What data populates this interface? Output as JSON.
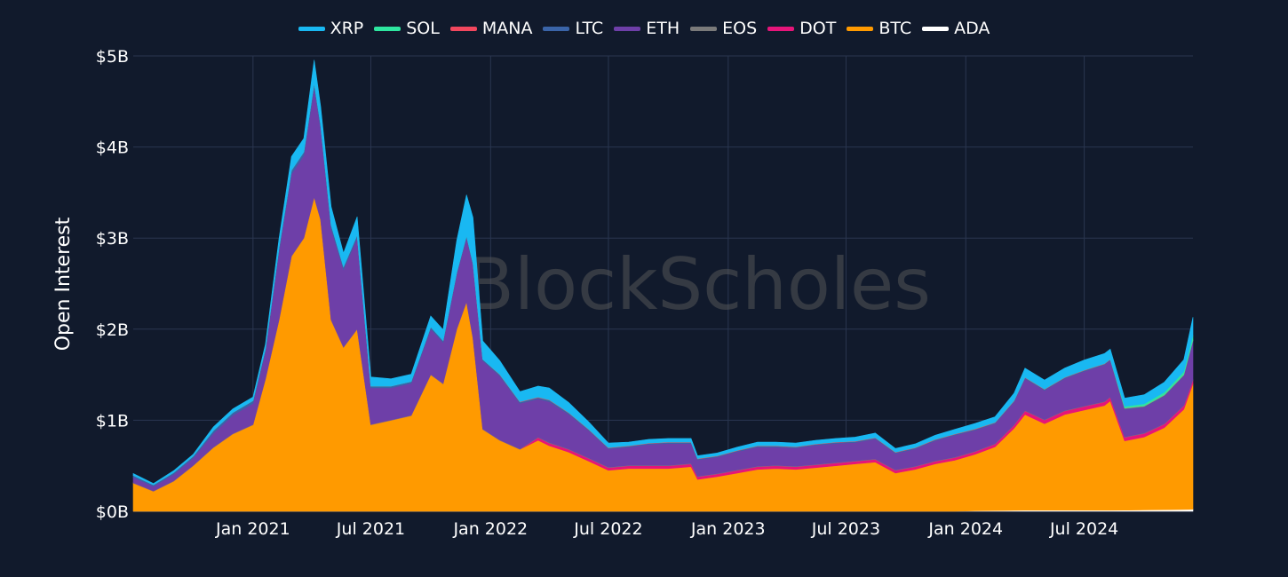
{
  "theme": {
    "background": "#111a2c",
    "grid": "#2a3650",
    "text": "#ffffff"
  },
  "watermark": "BlockScholes",
  "legend": [
    {
      "name": "XRP",
      "color": "#19b8f2"
    },
    {
      "name": "SOL",
      "color": "#2ee6a0"
    },
    {
      "name": "MANA",
      "color": "#f2475e"
    },
    {
      "name": "LTC",
      "color": "#3a64a8"
    },
    {
      "name": "ETH",
      "color": "#6e3fa8"
    },
    {
      "name": "EOS",
      "color": "#7a7a7a"
    },
    {
      "name": "DOT",
      "color": "#e6157a"
    },
    {
      "name": "BTC",
      "color": "#ff9a00"
    },
    {
      "name": "ADA",
      "color": "#ffffff"
    }
  ],
  "chart_data": {
    "type": "area",
    "stacked": true,
    "title": "",
    "xlabel": "",
    "ylabel": "Open Interest",
    "ylim": [
      0,
      5000000000
    ],
    "xlim": [
      "2020-07-01",
      "2024-12-15"
    ],
    "y_ticks": [
      {
        "value": 0,
        "label": "$0B"
      },
      {
        "value": 1000000000,
        "label": "$1B"
      },
      {
        "value": 2000000000,
        "label": "$2B"
      },
      {
        "value": 3000000000,
        "label": "$3B"
      },
      {
        "value": 4000000000,
        "label": "$4B"
      },
      {
        "value": 5000000000,
        "label": "$5B"
      }
    ],
    "x_ticks": [
      {
        "value": "2021-01-01",
        "label": "Jan 2021"
      },
      {
        "value": "2021-07-01",
        "label": "Jul 2021"
      },
      {
        "value": "2022-01-01",
        "label": "Jan 2022"
      },
      {
        "value": "2022-07-01",
        "label": "Jul 2022"
      },
      {
        "value": "2023-01-01",
        "label": "Jan 2023"
      },
      {
        "value": "2023-07-01",
        "label": "Jul 2023"
      },
      {
        "value": "2024-01-01",
        "label": "Jan 2024"
      },
      {
        "value": "2024-07-01",
        "label": "Jul 2024"
      }
    ],
    "grid": true,
    "legend_position": "top",
    "dates": [
      "2020-07-01",
      "2020-08-01",
      "2020-09-01",
      "2020-10-01",
      "2020-11-01",
      "2020-12-01",
      "2021-01-01",
      "2021-01-20",
      "2021-02-10",
      "2021-03-01",
      "2021-03-20",
      "2021-04-05",
      "2021-04-15",
      "2021-05-01",
      "2021-05-20",
      "2021-06-10",
      "2021-07-01",
      "2021-08-01",
      "2021-09-01",
      "2021-10-01",
      "2021-10-20",
      "2021-11-10",
      "2021-11-25",
      "2021-12-05",
      "2021-12-20",
      "2022-01-15",
      "2022-02-15",
      "2022-03-15",
      "2022-04-01",
      "2022-05-01",
      "2022-06-01",
      "2022-07-01",
      "2022-08-01",
      "2022-09-01",
      "2022-10-01",
      "2022-11-05",
      "2022-11-15",
      "2022-12-15",
      "2023-01-15",
      "2023-02-15",
      "2023-03-15",
      "2023-04-15",
      "2023-05-15",
      "2023-06-15",
      "2023-07-15",
      "2023-08-15",
      "2023-09-15",
      "2023-10-15",
      "2023-11-15",
      "2023-12-15",
      "2024-01-15",
      "2024-02-15",
      "2024-03-15",
      "2024-04-01",
      "2024-05-01",
      "2024-06-01",
      "2024-07-01",
      "2024-08-01",
      "2024-08-10",
      "2024-09-01",
      "2024-10-01",
      "2024-11-01",
      "2024-12-01",
      "2024-12-15"
    ],
    "series": [
      {
        "name": "ADA",
        "color": "#ffffff",
        "values": [
          0,
          0,
          0,
          0,
          0,
          0,
          0,
          0,
          0,
          0,
          0,
          0,
          0,
          0,
          0,
          0,
          0,
          0,
          0,
          0,
          0,
          0,
          0,
          0,
          0,
          0,
          0,
          0,
          0,
          0,
          0,
          0,
          0,
          0,
          0,
          0,
          0,
          0,
          0,
          0,
          0,
          0,
          0,
          0,
          0,
          0,
          0,
          0,
          0,
          0,
          5000000,
          8000000,
          10000000,
          12000000,
          12000000,
          12000000,
          12000000,
          12000000,
          12000000,
          13000000,
          15000000,
          18000000,
          20000000,
          22000000
        ]
      },
      {
        "name": "BTC",
        "color": "#ff9a00",
        "values": [
          310000000,
          220000000,
          330000000,
          500000000,
          700000000,
          850000000,
          950000000,
          1450000000,
          2100000000,
          2800000000,
          3000000000,
          3450000000,
          3200000000,
          2100000000,
          1800000000,
          2000000000,
          950000000,
          1000000000,
          1050000000,
          1500000000,
          1400000000,
          2000000000,
          2300000000,
          1900000000,
          900000000,
          780000000,
          680000000,
          780000000,
          720000000,
          650000000,
          550000000,
          450000000,
          470000000,
          470000000,
          470000000,
          490000000,
          350000000,
          380000000,
          420000000,
          460000000,
          470000000,
          460000000,
          480000000,
          500000000,
          520000000,
          540000000,
          420000000,
          460000000,
          520000000,
          560000000,
          620000000,
          700000000,
          900000000,
          1050000000,
          950000000,
          1050000000,
          1100000000,
          1150000000,
          1200000000,
          760000000,
          800000000,
          900000000,
          1100000000,
          1380000000
        ]
      },
      {
        "name": "DOT",
        "color": "#e6157a",
        "values": [
          0,
          0,
          0,
          0,
          0,
          0,
          0,
          0,
          0,
          0,
          0,
          0,
          0,
          0,
          0,
          0,
          0,
          0,
          0,
          0,
          0,
          0,
          0,
          0,
          0,
          0,
          0,
          30000000,
          30000000,
          30000000,
          30000000,
          30000000,
          30000000,
          30000000,
          30000000,
          30000000,
          30000000,
          30000000,
          30000000,
          30000000,
          30000000,
          30000000,
          30000000,
          30000000,
          30000000,
          30000000,
          30000000,
          30000000,
          30000000,
          30000000,
          30000000,
          30000000,
          35000000,
          40000000,
          40000000,
          40000000,
          40000000,
          40000000,
          40000000,
          40000000,
          40000000,
          40000000,
          40000000,
          40000000
        ]
      },
      {
        "name": "EOS",
        "color": "#7a7a7a",
        "values": [
          5000000,
          5000000,
          5000000,
          5000000,
          5000000,
          5000000,
          5000000,
          5000000,
          5000000,
          5000000,
          5000000,
          5000000,
          5000000,
          5000000,
          5000000,
          5000000,
          5000000,
          5000000,
          5000000,
          5000000,
          5000000,
          5000000,
          5000000,
          5000000,
          5000000,
          5000000,
          5000000,
          5000000,
          5000000,
          5000000,
          5000000,
          5000000,
          5000000,
          5000000,
          5000000,
          5000000,
          5000000,
          5000000,
          5000000,
          5000000,
          5000000,
          5000000,
          5000000,
          5000000,
          5000000,
          5000000,
          5000000,
          5000000,
          5000000,
          5000000,
          5000000,
          5000000,
          5000000,
          5000000,
          5000000,
          5000000,
          5000000,
          5000000,
          5000000,
          5000000,
          5000000,
          5000000,
          5000000,
          5000000
        ]
      },
      {
        "name": "ETH",
        "color": "#6e3fa8",
        "values": [
          60000000,
          50000000,
          70000000,
          80000000,
          150000000,
          200000000,
          230000000,
          300000000,
          750000000,
          900000000,
          900000000,
          1200000000,
          1000000000,
          1000000000,
          850000000,
          1000000000,
          400000000,
          350000000,
          350000000,
          500000000,
          450000000,
          600000000,
          700000000,
          800000000,
          750000000,
          700000000,
          500000000,
          420000000,
          450000000,
          380000000,
          300000000,
          200000000,
          200000000,
          230000000,
          240000000,
          220000000,
          180000000,
          180000000,
          200000000,
          210000000,
          200000000,
          200000000,
          210000000,
          210000000,
          200000000,
          220000000,
          180000000,
          190000000,
          220000000,
          240000000,
          230000000,
          220000000,
          250000000,
          350000000,
          320000000,
          350000000,
          380000000,
          400000000,
          400000000,
          300000000,
          280000000,
          300000000,
          320000000,
          420000000
        ]
      },
      {
        "name": "LTC",
        "color": "#3a64a8",
        "values": [
          20000000,
          15000000,
          20000000,
          20000000,
          30000000,
          30000000,
          30000000,
          30000000,
          40000000,
          40000000,
          40000000,
          50000000,
          40000000,
          40000000,
          30000000,
          30000000,
          20000000,
          20000000,
          20000000,
          20000000,
          20000000,
          20000000,
          20000000,
          20000000,
          15000000,
          15000000,
          15000000,
          15000000,
          15000000,
          15000000,
          10000000,
          10000000,
          10000000,
          10000000,
          10000000,
          10000000,
          10000000,
          10000000,
          10000000,
          10000000,
          10000000,
          10000000,
          10000000,
          10000000,
          10000000,
          10000000,
          10000000,
          10000000,
          10000000,
          10000000,
          10000000,
          10000000,
          10000000,
          10000000,
          10000000,
          10000000,
          10000000,
          10000000,
          10000000,
          10000000,
          10000000,
          10000000,
          10000000,
          10000000
        ]
      },
      {
        "name": "MANA",
        "color": "#f2475e",
        "values": [
          0,
          0,
          0,
          0,
          0,
          0,
          0,
          0,
          0,
          0,
          0,
          0,
          0,
          0,
          0,
          0,
          0,
          0,
          0,
          0,
          0,
          0,
          0,
          0,
          0,
          5000000,
          5000000,
          5000000,
          5000000,
          5000000,
          5000000,
          5000000,
          5000000,
          5000000,
          5000000,
          5000000,
          5000000,
          5000000,
          5000000,
          5000000,
          5000000,
          5000000,
          5000000,
          5000000,
          5000000,
          5000000,
          5000000,
          5000000,
          5000000,
          5000000,
          5000000,
          5000000,
          5000000,
          5000000,
          5000000,
          5000000,
          5000000,
          5000000,
          5000000,
          5000000,
          5000000,
          5000000,
          5000000,
          5000000
        ]
      },
      {
        "name": "SOL",
        "color": "#2ee6a0",
        "values": [
          0,
          0,
          0,
          0,
          0,
          0,
          0,
          0,
          0,
          0,
          0,
          0,
          0,
          0,
          0,
          0,
          0,
          0,
          0,
          0,
          0,
          0,
          0,
          0,
          0,
          0,
          0,
          0,
          0,
          0,
          0,
          0,
          0,
          0,
          0,
          0,
          0,
          0,
          0,
          0,
          0,
          0,
          0,
          0,
          0,
          0,
          0,
          0,
          0,
          0,
          0,
          0,
          0,
          0,
          0,
          0,
          0,
          0,
          0,
          20000000,
          25000000,
          30000000,
          35000000,
          50000000
        ]
      },
      {
        "name": "XRP",
        "color": "#19b8f2",
        "values": [
          20000000,
          15000000,
          20000000,
          20000000,
          40000000,
          40000000,
          40000000,
          50000000,
          100000000,
          150000000,
          150000000,
          250000000,
          200000000,
          200000000,
          150000000,
          200000000,
          100000000,
          80000000,
          80000000,
          120000000,
          120000000,
          350000000,
          450000000,
          500000000,
          200000000,
          150000000,
          110000000,
          120000000,
          130000000,
          110000000,
          80000000,
          50000000,
          40000000,
          40000000,
          40000000,
          40000000,
          30000000,
          30000000,
          35000000,
          40000000,
          40000000,
          40000000,
          40000000,
          40000000,
          45000000,
          50000000,
          40000000,
          40000000,
          45000000,
          50000000,
          60000000,
          60000000,
          80000000,
          100000000,
          100000000,
          100000000,
          110000000,
          110000000,
          110000000,
          90000000,
          100000000,
          110000000,
          130000000,
          200000000
        ]
      }
    ]
  }
}
